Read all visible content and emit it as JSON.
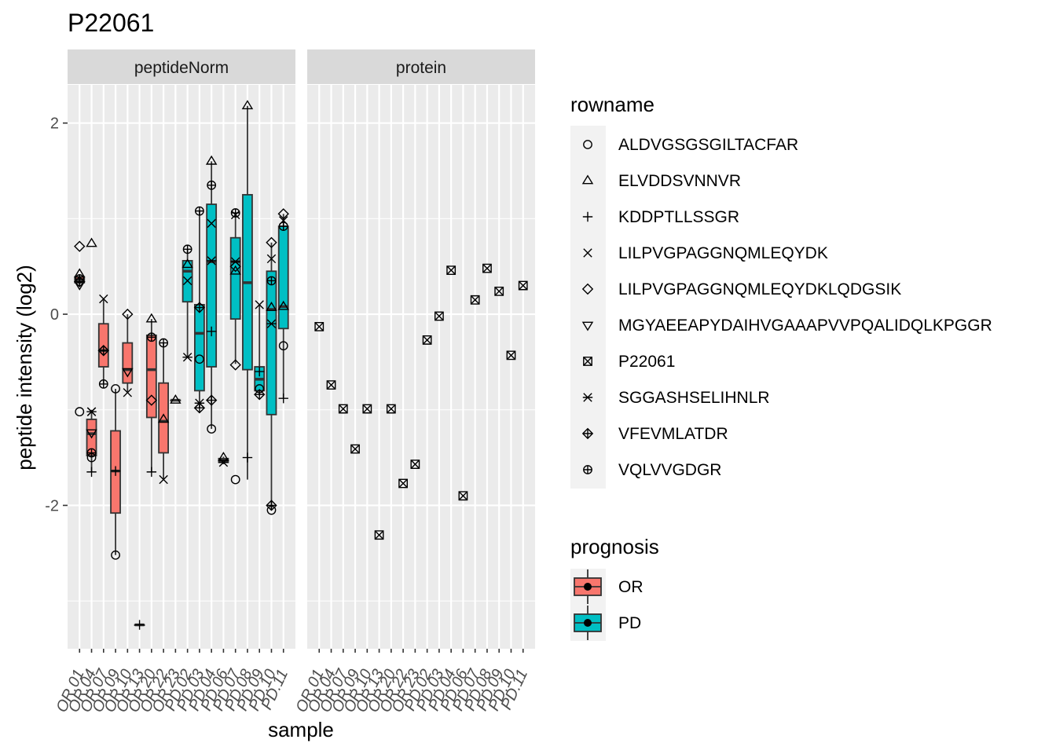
{
  "chart_data": {
    "type": "box",
    "title": "P22061",
    "xlabel": "sample",
    "ylabel": "peptide intensity (log2)",
    "ylim": [
      -3.5,
      2.4
    ],
    "yticks": [
      -2,
      0,
      2
    ],
    "grid": true,
    "legend_position": "right",
    "categories": [
      "OR.01",
      "OR.04",
      "OR.07",
      "OR.09",
      "OR.10",
      "OR.13",
      "OR.20",
      "OR.22",
      "OR.23",
      "PD.02",
      "PD.03",
      "PD.04",
      "PD.06",
      "PD.07",
      "PD.08",
      "PD.09",
      "PD.10",
      "PD.11"
    ],
    "facets": [
      {
        "label": "peptideNorm",
        "boxes": [
          {
            "sample": "OR.01",
            "prognosis": "OR",
            "min": 0.3,
            "q1": 0.33,
            "median": 0.36,
            "q3": 0.39,
            "max": 0.42
          },
          {
            "sample": "OR.04",
            "prognosis": "OR",
            "min": -1.65,
            "q1": -1.48,
            "median": -1.25,
            "q3": -1.1,
            "max": -1.0
          },
          {
            "sample": "OR.07",
            "prognosis": "OR",
            "min": -0.73,
            "q1": -0.55,
            "median": -0.38,
            "q3": -0.1,
            "max": 0.16
          },
          {
            "sample": "OR.09",
            "prognosis": "OR",
            "min": -2.52,
            "q1": -2.08,
            "median": -1.64,
            "q3": -1.22,
            "max": -0.78
          },
          {
            "sample": "OR.10",
            "prognosis": "OR",
            "min": -0.82,
            "q1": -0.72,
            "median": -0.58,
            "q3": -0.3,
            "max": 0.0
          },
          {
            "sample": "OR.13",
            "prognosis": "OR",
            "min": -3.25,
            "q1": -3.25,
            "median": -3.25,
            "q3": -3.25,
            "max": -3.25
          },
          {
            "sample": "OR.20",
            "prognosis": "OR",
            "min": -1.65,
            "q1": -1.08,
            "median": -0.58,
            "q3": -0.22,
            "max": -0.05
          },
          {
            "sample": "OR.22",
            "prognosis": "OR",
            "min": -1.73,
            "q1": -1.45,
            "median": -1.12,
            "q3": -0.72,
            "max": -0.3
          },
          {
            "sample": "OR.23",
            "prognosis": "OR",
            "min": -0.9,
            "q1": -0.9,
            "median": -0.9,
            "q3": -0.9,
            "max": -0.9
          },
          {
            "sample": "PD.02",
            "prognosis": "PD",
            "min": -0.45,
            "q1": 0.13,
            "median": 0.45,
            "q3": 0.56,
            "max": 0.68
          },
          {
            "sample": "PD.03",
            "prognosis": "PD",
            "min": -0.98,
            "q1": -0.8,
            "median": -0.2,
            "q3": 0.1,
            "max": 1.08
          },
          {
            "sample": "PD.04",
            "prognosis": "PD",
            "min": -1.2,
            "q1": -0.55,
            "median": 0.55,
            "q3": 1.15,
            "max": 1.6
          },
          {
            "sample": "PD.06",
            "prognosis": "PD",
            "min": -1.57,
            "q1": -1.55,
            "median": -1.53,
            "q3": -1.51,
            "max": -1.49
          },
          {
            "sample": "PD.07",
            "prognosis": "PD",
            "min": -0.52,
            "q1": -0.05,
            "median": 0.55,
            "q3": 0.8,
            "max": 1.06
          },
          {
            "sample": "PD.08",
            "prognosis": "PD",
            "min": -1.73,
            "q1": -0.58,
            "median": 0.33,
            "q3": 1.25,
            "max": 2.18
          },
          {
            "sample": "PD.09",
            "prognosis": "PD",
            "min": -0.85,
            "q1": -0.8,
            "median": -0.68,
            "q3": -0.55,
            "max": 0.1
          },
          {
            "sample": "PD.10",
            "prognosis": "PD",
            "min": -2.05,
            "q1": -1.05,
            "median": 0.05,
            "q3": 0.45,
            "max": 0.75
          },
          {
            "sample": "PD.11",
            "prognosis": "PD",
            "min": -0.88,
            "q1": -0.15,
            "median": 0.08,
            "q3": 0.92,
            "max": 1.05
          }
        ],
        "points": [
          {
            "sample": "OR.01",
            "peptide": "ALDVGSGSGILTACFAR",
            "y": -1.02
          },
          {
            "sample": "OR.01",
            "peptide": "LILPVGPAGGNQMLEQYDKLQDGSIK",
            "y": 0.71
          },
          {
            "sample": "OR.01",
            "peptide": "ELVDDSVNNVR",
            "y": 0.42
          },
          {
            "sample": "OR.01",
            "peptide": "VQLVVGDGR",
            "y": 0.37
          },
          {
            "sample": "OR.01",
            "peptide": "VFEVMLATDR",
            "y": 0.34
          },
          {
            "sample": "OR.01",
            "peptide": "MGYAEEAPYDAIHVGAAAPVVPQALIDQLKPGGR",
            "y": 0.31
          },
          {
            "sample": "OR.04",
            "peptide": "ELVDDSVNNVR",
            "y": 0.74
          },
          {
            "sample": "OR.04",
            "peptide": "SGGASHSELIHNLR",
            "y": -1.02
          },
          {
            "sample": "OR.04",
            "peptide": "LILPVGPAGGNQMLEQYDK",
            "y": -1.02
          },
          {
            "sample": "OR.04",
            "peptide": "MGYAEEAPYDAIHVGAAAPVVPQALIDQLKPGGR",
            "y": -1.24
          },
          {
            "sample": "OR.04",
            "peptide": "VQLVVGDGR",
            "y": -1.45
          },
          {
            "sample": "OR.04",
            "peptide": "ALDVGSGSGILTACFAR",
            "y": -1.5
          },
          {
            "sample": "OR.04",
            "peptide": "KDDPTLLSSGR",
            "y": -1.65
          },
          {
            "sample": "OR.07",
            "peptide": "LILPVGPAGGNQMLEQYDK",
            "y": 0.16
          },
          {
            "sample": "OR.07",
            "peptide": "LILPVGPAGGNQMLEQYDKLQDGSIK",
            "y": -0.38
          },
          {
            "sample": "OR.07",
            "peptide": "VFEVMLATDR",
            "y": -0.38
          },
          {
            "sample": "OR.07",
            "peptide": "VQLVVGDGR",
            "y": -0.73
          },
          {
            "sample": "OR.09",
            "peptide": "ALDVGSGSGILTACFAR",
            "y": -0.78
          },
          {
            "sample": "OR.09",
            "peptide": "KDDPTLLSSGR",
            "y": -1.64
          },
          {
            "sample": "OR.09",
            "peptide": "ALDVGSGSGILTACFAR",
            "y": -2.52
          },
          {
            "sample": "OR.10",
            "peptide": "LILPVGPAGGNQMLEQYDKLQDGSIK",
            "y": 0.0
          },
          {
            "sample": "OR.10",
            "peptide": "MGYAEEAPYDAIHVGAAAPVVPQALIDQLKPGGR",
            "y": -0.6
          },
          {
            "sample": "OR.10",
            "peptide": "LILPVGPAGGNQMLEQYDK",
            "y": -0.82
          },
          {
            "sample": "OR.13",
            "peptide": "KDDPTLLSSGR",
            "y": -3.25
          },
          {
            "sample": "OR.20",
            "peptide": "ELVDDSVNNVR",
            "y": -0.05
          },
          {
            "sample": "OR.20",
            "peptide": "VQLVVGDGR",
            "y": -0.24
          },
          {
            "sample": "OR.20",
            "peptide": "LILPVGPAGGNQMLEQYDKLQDGSIK",
            "y": -0.9
          },
          {
            "sample": "OR.20",
            "peptide": "KDDPTLLSSGR",
            "y": -1.65
          },
          {
            "sample": "OR.22",
            "peptide": "VQLVVGDGR",
            "y": -0.3
          },
          {
            "sample": "OR.22",
            "peptide": "ELVDDSVNNVR",
            "y": -1.1
          },
          {
            "sample": "OR.22",
            "peptide": "LILPVGPAGGNQMLEQYDK",
            "y": -1.73
          },
          {
            "sample": "OR.23",
            "peptide": "ELVDDSVNNVR",
            "y": -0.9
          },
          {
            "sample": "PD.02",
            "peptide": "VQLVVGDGR",
            "y": 0.68
          },
          {
            "sample": "PD.02",
            "peptide": "ELVDDSVNNVR",
            "y": 0.52
          },
          {
            "sample": "PD.02",
            "peptide": "LILPVGPAGGNQMLEQYDK",
            "y": 0.35
          },
          {
            "sample": "PD.02",
            "peptide": "SGGASHSELIHNLR",
            "y": -0.45
          },
          {
            "sample": "PD.03",
            "peptide": "VQLVVGDGR",
            "y": 1.08
          },
          {
            "sample": "PD.03",
            "peptide": "VFEVMLATDR",
            "y": 0.07
          },
          {
            "sample": "PD.03",
            "peptide": "ALDVGSGSGILTACFAR",
            "y": -0.47
          },
          {
            "sample": "PD.03",
            "peptide": "SGGASHSELIHNLR",
            "y": -0.93
          },
          {
            "sample": "PD.03",
            "peptide": "VFEVMLATDR",
            "y": -0.98
          },
          {
            "sample": "PD.04",
            "peptide": "ELVDDSVNNVR",
            "y": 1.6
          },
          {
            "sample": "PD.04",
            "peptide": "VQLVVGDGR",
            "y": 1.35
          },
          {
            "sample": "PD.04",
            "peptide": "LILPVGPAGGNQMLEQYDK",
            "y": 0.95
          },
          {
            "sample": "PD.04",
            "peptide": "SGGASHSELIHNLR",
            "y": 0.56
          },
          {
            "sample": "PD.04",
            "peptide": "KDDPTLLSSGR",
            "y": -0.18
          },
          {
            "sample": "PD.04",
            "peptide": "VFEVMLATDR",
            "y": -0.9
          },
          {
            "sample": "PD.04",
            "peptide": "ALDVGSGSGILTACFAR",
            "y": -1.2
          },
          {
            "sample": "PD.06",
            "peptide": "ELVDDSVNNVR",
            "y": -1.5
          },
          {
            "sample": "PD.06",
            "peptide": "SGGASHSELIHNLR",
            "y": -1.55
          },
          {
            "sample": "PD.07",
            "peptide": "VQLVVGDGR",
            "y": 1.06
          },
          {
            "sample": "PD.07",
            "peptide": "LILPVGPAGGNQMLEQYDK",
            "y": 1.04
          },
          {
            "sample": "PD.07",
            "peptide": "SGGASHSELIHNLR",
            "y": 0.55
          },
          {
            "sample": "PD.07",
            "peptide": "LILPVGPAGGNQMLEQYDKLQDGSIK",
            "y": 0.5
          },
          {
            "sample": "PD.07",
            "peptide": "ELVDDSVNNVR",
            "y": 0.45
          },
          {
            "sample": "PD.07",
            "peptide": "LILPVGPAGGNQMLEQYDKLQDGSIK",
            "y": -0.53
          },
          {
            "sample": "PD.07",
            "peptide": "ALDVGSGSGILTACFAR",
            "y": -1.73
          },
          {
            "sample": "PD.08",
            "peptide": "ELVDDSVNNVR",
            "y": 2.18
          },
          {
            "sample": "PD.08",
            "peptide": "KDDPTLLSSGR",
            "y": -1.5
          },
          {
            "sample": "PD.09",
            "peptide": "LILPVGPAGGNQMLEQYDK",
            "y": 0.1
          },
          {
            "sample": "PD.09",
            "peptide": "KDDPTLLSSGR",
            "y": -0.6
          },
          {
            "sample": "PD.09",
            "peptide": "ALDVGSGSGILTACFAR",
            "y": -0.78
          },
          {
            "sample": "PD.09",
            "peptide": "VFEVMLATDR",
            "y": -0.84
          },
          {
            "sample": "PD.10",
            "peptide": "LILPVGPAGGNQMLEQYDKLQDGSIK",
            "y": 0.75
          },
          {
            "sample": "PD.10",
            "peptide": "LILPVGPAGGNQMLEQYDK",
            "y": 0.58
          },
          {
            "sample": "PD.10",
            "peptide": "VQLVVGDGR",
            "y": 0.35
          },
          {
            "sample": "PD.10",
            "peptide": "ELVDDSVNNVR",
            "y": 0.07
          },
          {
            "sample": "PD.10",
            "peptide": "SGGASHSELIHNLR",
            "y": -0.1
          },
          {
            "sample": "PD.10",
            "peptide": "VFEVMLATDR",
            "y": -2.0
          },
          {
            "sample": "PD.10",
            "peptide": "ALDVGSGSGILTACFAR",
            "y": -2.05
          },
          {
            "sample": "PD.11",
            "peptide": "LILPVGPAGGNQMLEQYDKLQDGSIK",
            "y": 1.05
          },
          {
            "sample": "PD.11",
            "peptide": "LILPVGPAGGNQMLEQYDK",
            "y": 0.98
          },
          {
            "sample": "PD.11",
            "peptide": "VQLVVGDGR",
            "y": 0.92
          },
          {
            "sample": "PD.11",
            "peptide": "ELVDDSVNNVR",
            "y": 0.08
          },
          {
            "sample": "PD.11",
            "peptide": "ALDVGSGSGILTACFAR",
            "y": -0.33
          },
          {
            "sample": "PD.11",
            "peptide": "KDDPTLLSSGR",
            "y": -0.88
          }
        ]
      },
      {
        "label": "protein",
        "boxes": [],
        "points": [
          {
            "sample": "OR.01",
            "peptide": "P22061",
            "y": -0.13
          },
          {
            "sample": "OR.04",
            "peptide": "P22061",
            "y": -0.74
          },
          {
            "sample": "OR.07",
            "peptide": "P22061",
            "y": -0.99
          },
          {
            "sample": "OR.09",
            "peptide": "P22061",
            "y": -1.41
          },
          {
            "sample": "OR.10",
            "peptide": "P22061",
            "y": -0.99
          },
          {
            "sample": "OR.13",
            "peptide": "P22061",
            "y": -2.31
          },
          {
            "sample": "OR.20",
            "peptide": "P22061",
            "y": -0.99
          },
          {
            "sample": "OR.22",
            "peptide": "P22061",
            "y": -1.77
          },
          {
            "sample": "OR.23",
            "peptide": "P22061",
            "y": -1.57
          },
          {
            "sample": "PD.02",
            "peptide": "P22061",
            "y": -0.27
          },
          {
            "sample": "PD.03",
            "peptide": "P22061",
            "y": -0.02
          },
          {
            "sample": "PD.04",
            "peptide": "P22061",
            "y": 0.46
          },
          {
            "sample": "PD.06",
            "peptide": "P22061",
            "y": -1.9
          },
          {
            "sample": "PD.07",
            "peptide": "P22061",
            "y": 0.15
          },
          {
            "sample": "PD.08",
            "peptide": "P22061",
            "y": 0.48
          },
          {
            "sample": "PD.09",
            "peptide": "P22061",
            "y": 0.24
          },
          {
            "sample": "PD.10",
            "peptide": "P22061",
            "y": -0.43
          },
          {
            "sample": "PD.11",
            "peptide": "P22061",
            "y": 0.3
          }
        ]
      }
    ],
    "legends": {
      "shape": {
        "title": "rowname",
        "items": [
          {
            "label": "ALDVGSGSGILTACFAR",
            "shape": "circle-open"
          },
          {
            "label": "ELVDDSVNNVR",
            "shape": "triangle-open"
          },
          {
            "label": "KDDPTLLSSGR",
            "shape": "plus"
          },
          {
            "label": "LILPVGPAGGNQMLEQYDK",
            "shape": "cross"
          },
          {
            "label": "LILPVGPAGGNQMLEQYDKLQDGSIK",
            "shape": "diamond-open"
          },
          {
            "label": "MGYAEEAPYDAIHVGAAAPVVPQALIDQLKPGGR",
            "shape": "triangle-down-open"
          },
          {
            "label": "P22061",
            "shape": "square-cross"
          },
          {
            "label": "SGGASHSELIHNLR",
            "shape": "asterisk"
          },
          {
            "label": "VFEVMLATDR",
            "shape": "diamond-plus"
          },
          {
            "label": "VQLVVGDGR",
            "shape": "circle-plus"
          }
        ]
      },
      "fill": {
        "title": "prognosis",
        "items": [
          {
            "label": "OR",
            "color": "#F8766D"
          },
          {
            "label": "PD",
            "color": "#00BFC4"
          }
        ]
      }
    },
    "colors": {
      "OR": "#F8766D",
      "PD": "#00BFC4",
      "panel": "#EBEBEB",
      "strip": "#D9D9D9"
    }
  }
}
